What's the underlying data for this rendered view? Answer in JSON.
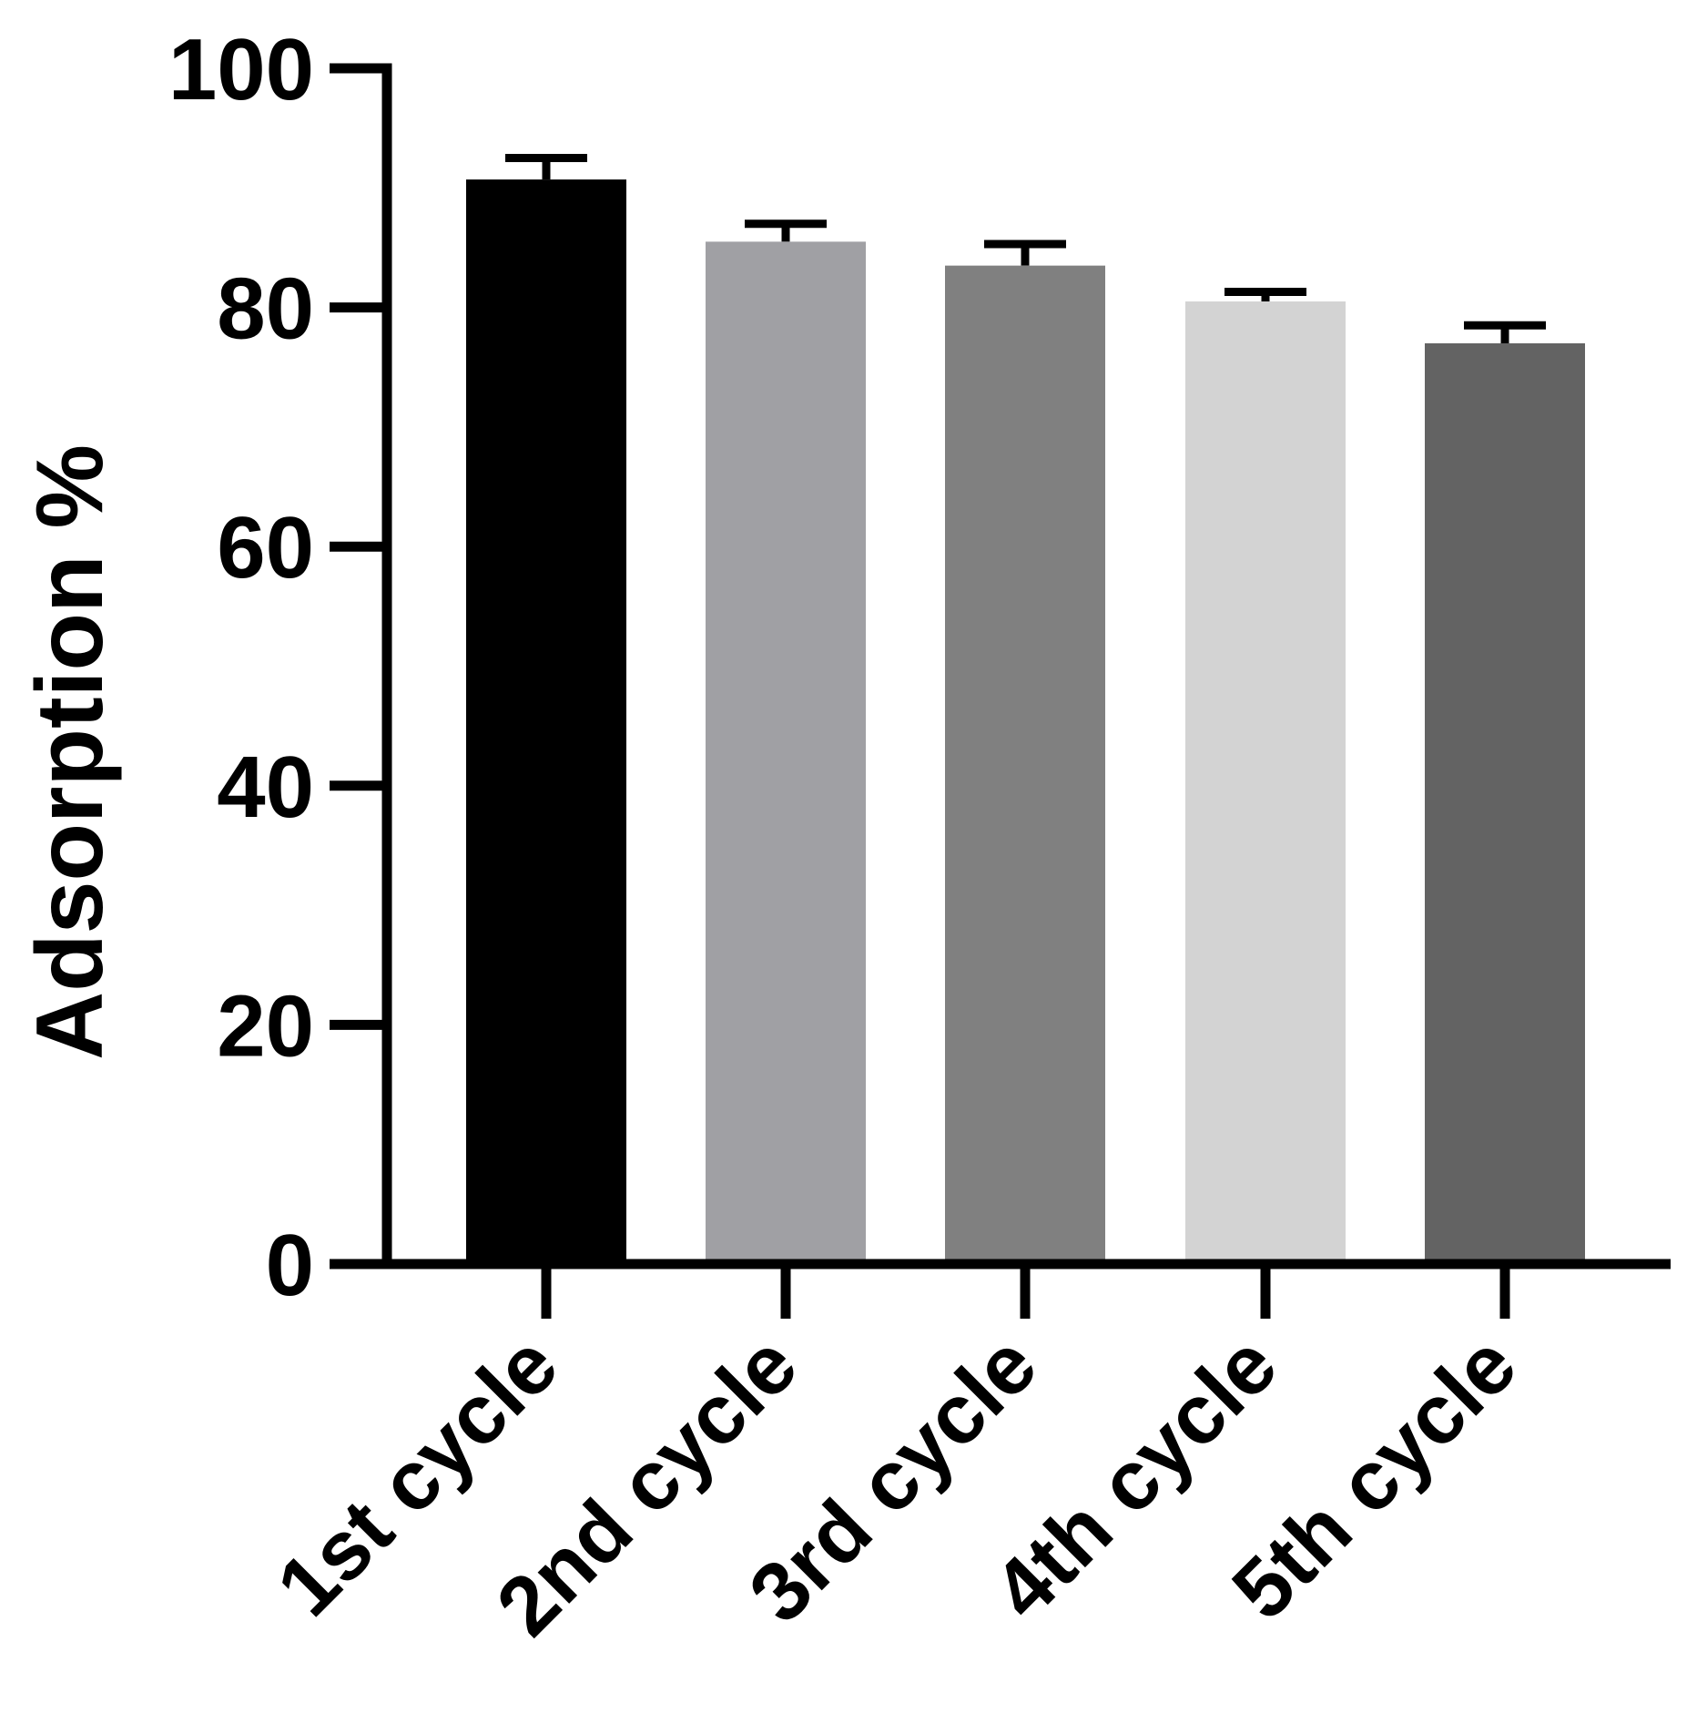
{
  "chart_data": {
    "type": "bar",
    "title": "",
    "xlabel": "",
    "ylabel": "Adsorption %",
    "ylim": [
      0,
      100
    ],
    "yticks": [
      0,
      20,
      40,
      60,
      80,
      100
    ],
    "ytick_labels": [
      "0",
      "20",
      "40",
      "60",
      "80",
      "100"
    ],
    "categories": [
      "1st cycle",
      "2nd cycle",
      "3rd cycle",
      "4th cycle",
      "5th cycle"
    ],
    "values": [
      90.7,
      85.5,
      83.5,
      80.5,
      77.0
    ],
    "errors": [
      1.8,
      1.5,
      1.8,
      0.8,
      1.5
    ],
    "colors": [
      "#000000",
      "#a0a0a4",
      "#808080",
      "#d3d3d3",
      "#636363"
    ],
    "grid": false,
    "legend": "none"
  }
}
